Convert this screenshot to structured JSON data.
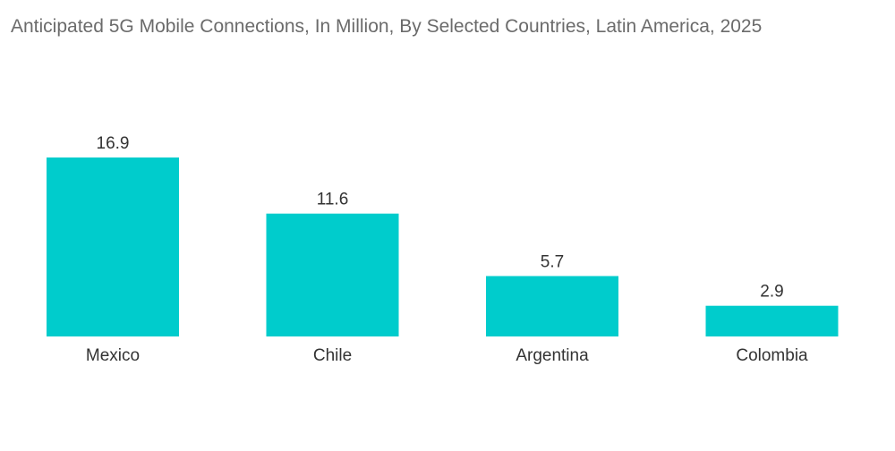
{
  "chart_data": {
    "type": "bar",
    "title": "Anticipated 5G Mobile Connections, In Million, By Selected Countries, Latin America, 2025",
    "categories": [
      "Mexico",
      "Chile",
      "Argentina",
      "Colombia"
    ],
    "values": [
      16.9,
      11.6,
      5.7,
      2.9
    ],
    "data_labels": [
      "16.9",
      "11.6",
      "5.7",
      "2.9"
    ],
    "xlabel": "",
    "ylabel": "",
    "ylim": [
      0,
      16.9
    ],
    "grid": false,
    "legend": "none",
    "bar_color": "#00cccc"
  }
}
